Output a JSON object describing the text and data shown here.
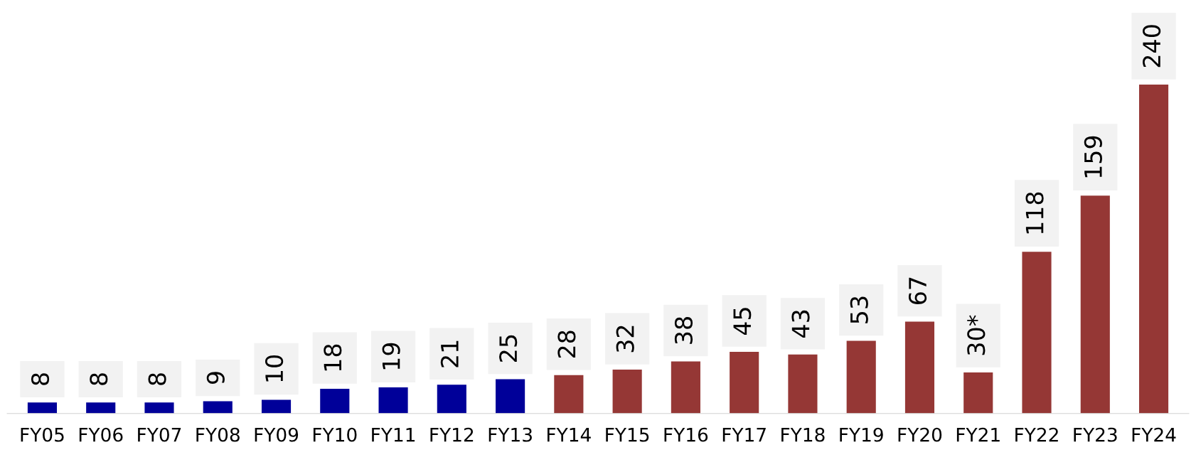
{
  "chart_data": {
    "type": "bar",
    "categories": [
      "FY05",
      "FY06",
      "FY07",
      "FY08",
      "FY09",
      "FY10",
      "FY11",
      "FY12",
      "FY13",
      "FY14",
      "FY15",
      "FY16",
      "FY17",
      "FY18",
      "FY19",
      "FY20",
      "FY21",
      "FY22",
      "FY23",
      "FY24"
    ],
    "values": [
      8,
      8,
      8,
      9,
      10,
      18,
      19,
      21,
      25,
      28,
      32,
      38,
      45,
      43,
      53,
      67,
      30,
      118,
      159,
      240
    ],
    "colors": [
      "#000099",
      "#000099",
      "#000099",
      "#000099",
      "#000099",
      "#000099",
      "#000099",
      "#000099",
      "#000099",
      "#953735",
      "#953735",
      "#953735",
      "#953735",
      "#953735",
      "#953735",
      "#953735",
      "#953735",
      "#953735",
      "#953735",
      "#953735"
    ],
    "value_labels": [
      "8",
      "8",
      "8",
      "9",
      "10",
      "18",
      "19",
      "21",
      "25",
      "28",
      "32",
      "38",
      "45",
      "43",
      "53",
      "67",
      "30*",
      "118",
      "159",
      "240"
    ],
    "grid": false,
    "legend": false
  }
}
